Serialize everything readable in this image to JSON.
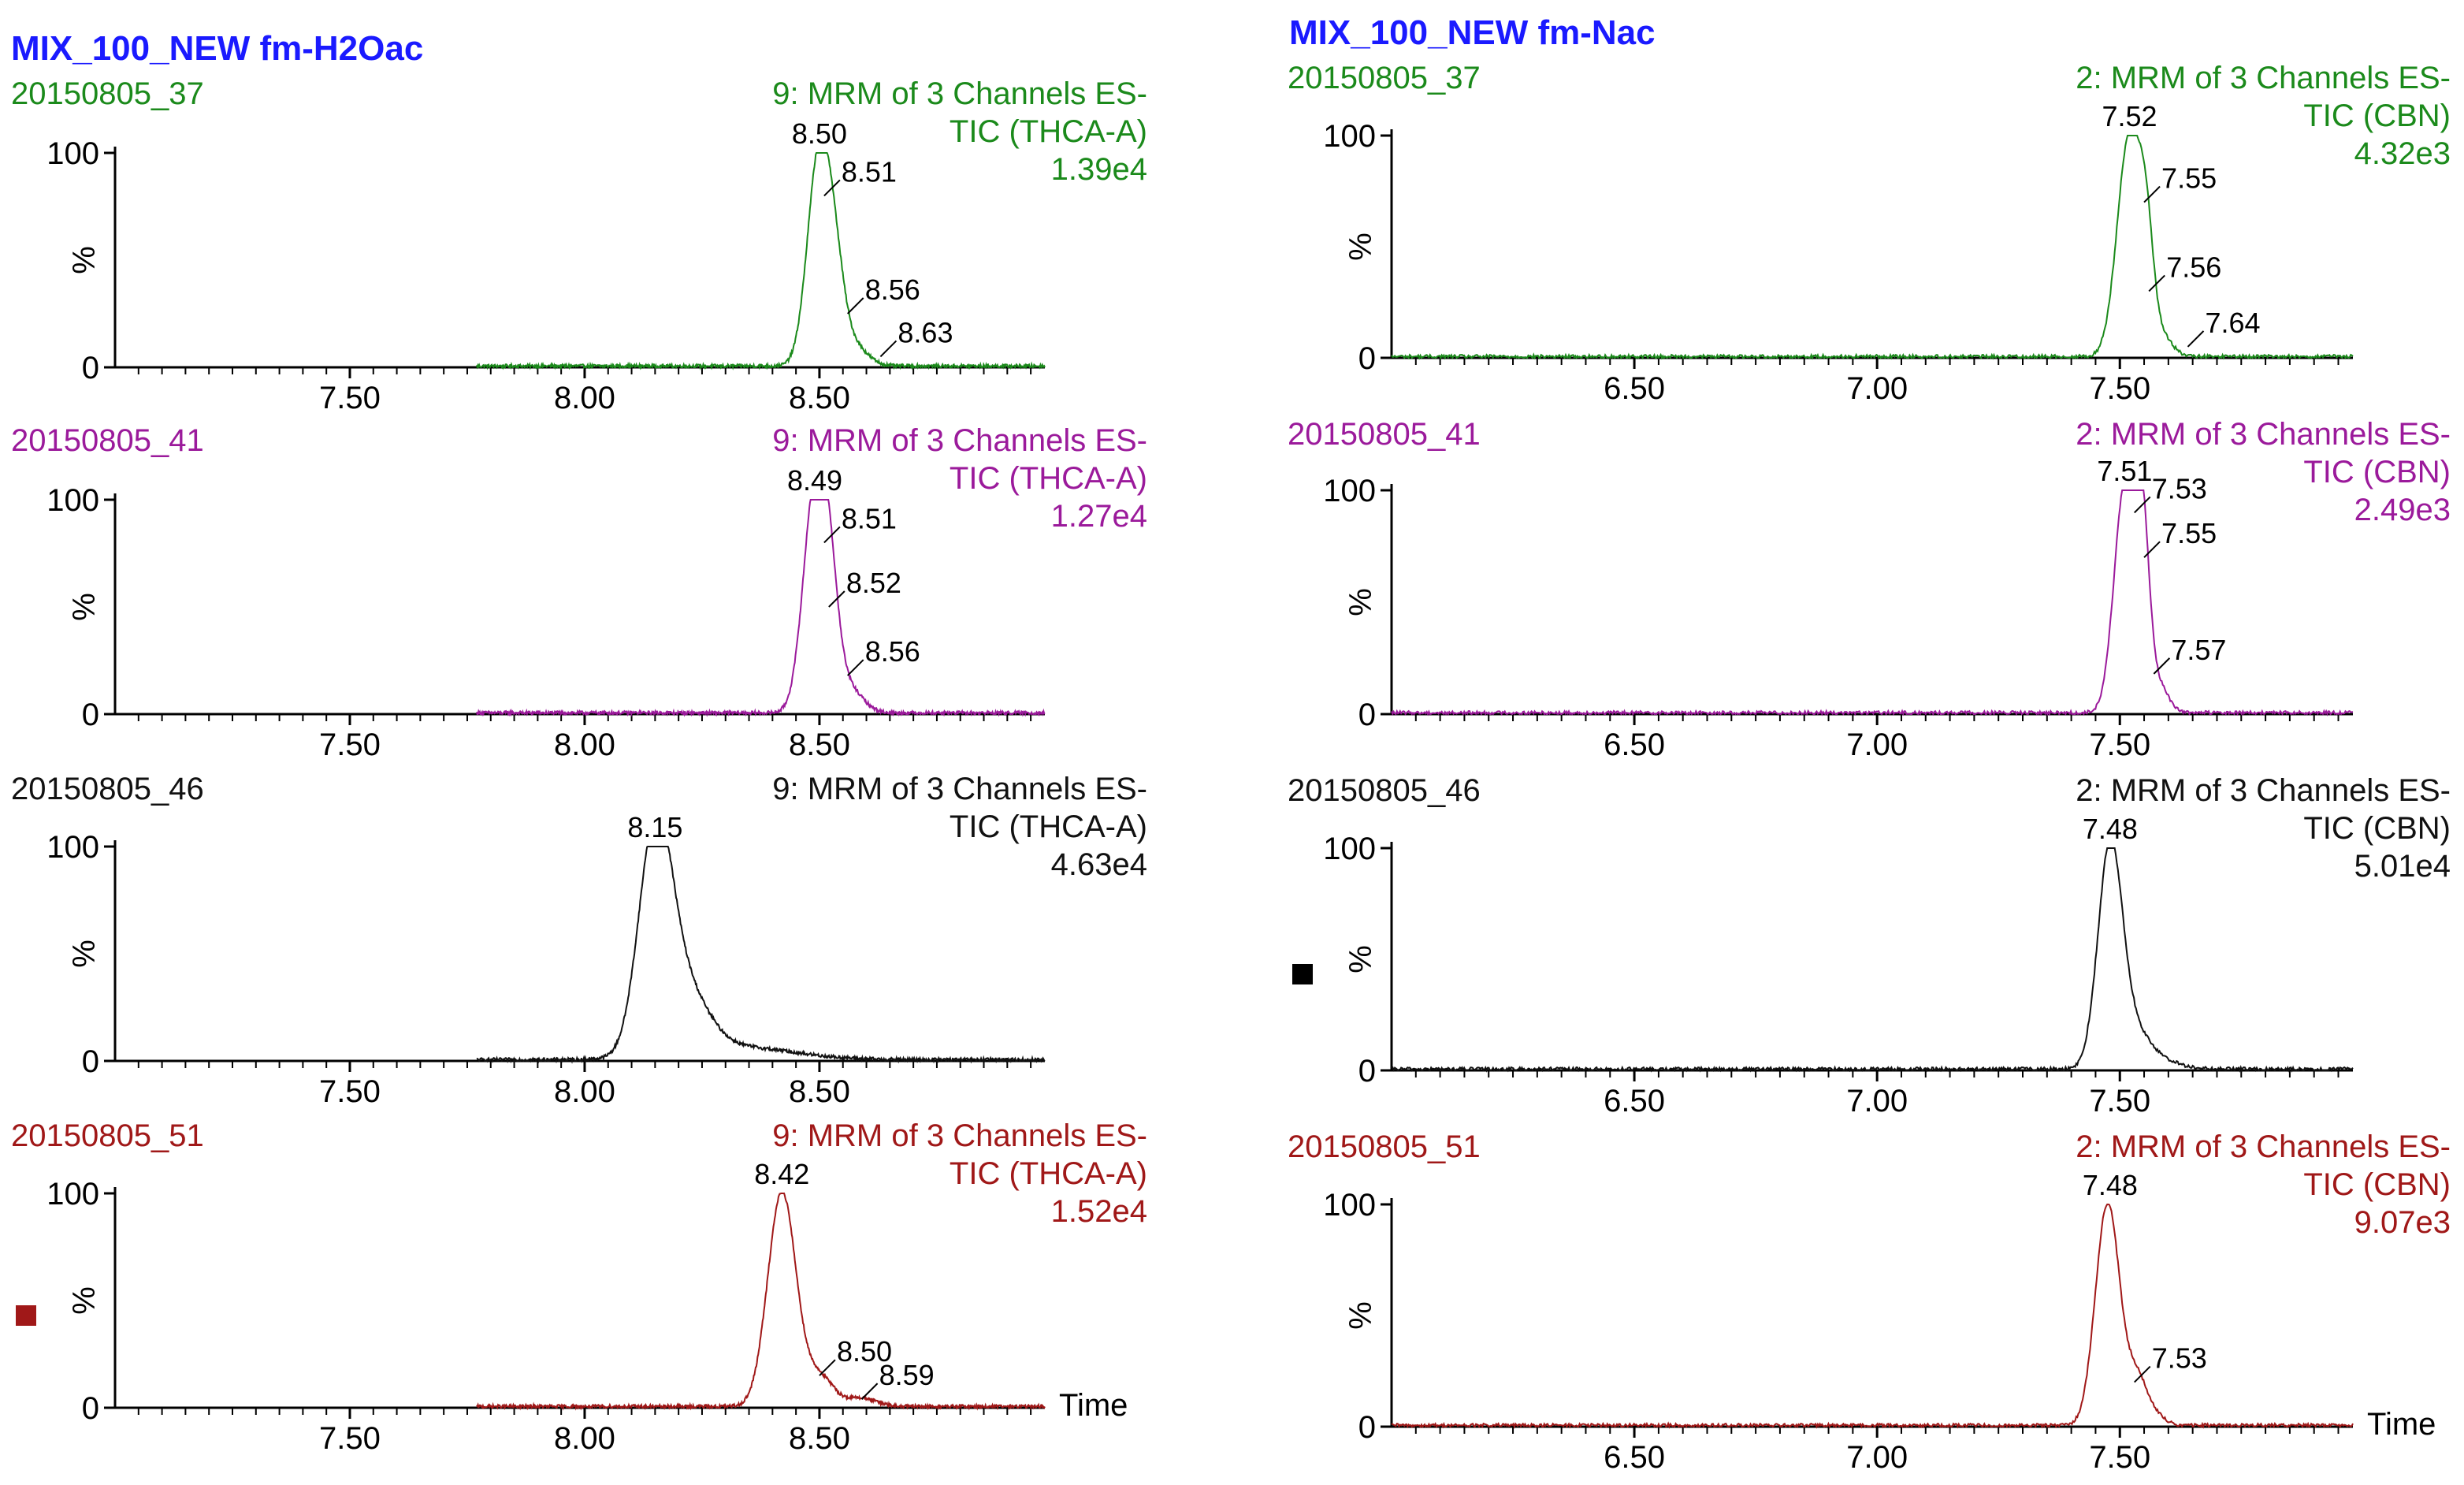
{
  "columns": [
    {
      "title": "MIX_100_NEW fm-H2Oac",
      "title_color": "#1a1aff"
    },
    {
      "title": "MIX_100_NEW fm-Nac",
      "title_color": "#1a1aff"
    }
  ],
  "y_axis": {
    "label": "%",
    "ticks": [
      "100",
      "0"
    ]
  },
  "time_label": "Time",
  "chart_data": [
    {
      "type": "line",
      "sample": "20150805_37",
      "color": "#1b8a1b",
      "channel": "9: MRM of 3 Channels ES-",
      "trace": "TIC (THCA-A)",
      "intensity": "1.39e4",
      "xlim": [
        7.0,
        8.98
      ],
      "ylim": [
        0,
        100
      ],
      "xticks": [
        7.5,
        8.0,
        8.5
      ],
      "xtick_labels": [
        "7.50",
        "8.00",
        "8.50"
      ],
      "baseline_start": 7.77,
      "peaks": [
        {
          "center": 8.5,
          "height": 100,
          "width": 0.025
        },
        {
          "center": 8.535,
          "height": 28,
          "width": 0.02
        },
        {
          "center": 8.57,
          "height": 10,
          "width": 0.03
        }
      ],
      "peak_labels": [
        {
          "x": 8.5,
          "y": 100,
          "text": "8.50"
        },
        {
          "x": 8.51,
          "y": 80,
          "text": "8.51"
        },
        {
          "x": 8.56,
          "y": 25,
          "text": "8.56"
        },
        {
          "x": 8.63,
          "y": 5,
          "text": "8.63"
        }
      ]
    },
    {
      "type": "line",
      "sample": "20150805_41",
      "color": "#9b1a9b",
      "channel": "9: MRM of 3 Channels ES-",
      "trace": "TIC (THCA-A)",
      "intensity": "1.27e4",
      "xlim": [
        7.0,
        8.98
      ],
      "ylim": [
        0,
        100
      ],
      "xticks": [
        7.5,
        8.0,
        8.5
      ],
      "xtick_labels": [
        "7.50",
        "8.00",
        "8.50"
      ],
      "baseline_start": 7.77,
      "peaks": [
        {
          "center": 8.49,
          "height": 100,
          "width": 0.025
        },
        {
          "center": 8.52,
          "height": 45,
          "width": 0.02
        },
        {
          "center": 8.56,
          "height": 12,
          "width": 0.03
        }
      ],
      "peak_labels": [
        {
          "x": 8.49,
          "y": 100,
          "text": "8.49"
        },
        {
          "x": 8.51,
          "y": 80,
          "text": "8.51"
        },
        {
          "x": 8.52,
          "y": 50,
          "text": "8.52"
        },
        {
          "x": 8.56,
          "y": 18,
          "text": "8.56"
        }
      ]
    },
    {
      "type": "line",
      "sample": "20150805_46",
      "color": "#111111",
      "channel": "9: MRM of 3 Channels ES-",
      "trace": "TIC (THCA-A)",
      "intensity": "4.63e4",
      "xlim": [
        7.0,
        8.98
      ],
      "ylim": [
        0,
        100
      ],
      "xticks": [
        7.5,
        8.0,
        8.5
      ],
      "xtick_labels": [
        "7.50",
        "8.00",
        "8.50"
      ],
      "baseline_start": 7.77,
      "peaks": [
        {
          "center": 8.15,
          "height": 100,
          "width": 0.035
        },
        {
          "center": 8.21,
          "height": 30,
          "width": 0.05
        },
        {
          "center": 8.32,
          "height": 6,
          "width": 0.12
        }
      ],
      "peak_labels": [
        {
          "x": 8.15,
          "y": 100,
          "text": "8.15"
        }
      ]
    },
    {
      "type": "line",
      "sample": "20150805_51",
      "color": "#a01818",
      "channel": "9: MRM of 3 Channels ES-",
      "trace": "TIC (THCA-A)",
      "intensity": "1.52e4",
      "xlim": [
        7.0,
        8.98
      ],
      "ylim": [
        0,
        100
      ],
      "xticks": [
        7.5,
        8.0,
        8.5
      ],
      "xtick_labels": [
        "7.50",
        "8.00",
        "8.50"
      ],
      "baseline_start": 7.77,
      "show_time_label": true,
      "marker": true,
      "peaks": [
        {
          "center": 8.42,
          "height": 100,
          "width": 0.03
        },
        {
          "center": 8.5,
          "height": 14,
          "width": 0.03
        },
        {
          "center": 8.59,
          "height": 4,
          "width": 0.03
        }
      ],
      "peak_labels": [
        {
          "x": 8.42,
          "y": 100,
          "text": "8.42"
        },
        {
          "x": 8.5,
          "y": 15,
          "text": "8.50"
        },
        {
          "x": 8.59,
          "y": 4,
          "text": "8.59"
        }
      ]
    },
    {
      "type": "line",
      "sample": "20150805_37",
      "color": "#1b8a1b",
      "channel": "2: MRM of 3 Channels ES-",
      "trace": "TIC (CBN)",
      "intensity": "4.32e3",
      "xlim": [
        6.0,
        7.98
      ],
      "ylim": [
        0,
        100
      ],
      "xticks": [
        6.5,
        7.0,
        7.5
      ],
      "xtick_labels": [
        "6.50",
        "7.00",
        "7.50"
      ],
      "baseline_start": 6.0,
      "peaks": [
        {
          "center": 7.52,
          "height": 100,
          "width": 0.025
        },
        {
          "center": 7.555,
          "height": 40,
          "width": 0.015
        },
        {
          "center": 7.59,
          "height": 8,
          "width": 0.02
        }
      ],
      "peak_labels": [
        {
          "x": 7.52,
          "y": 100,
          "text": "7.52"
        },
        {
          "x": 7.55,
          "y": 70,
          "text": "7.55"
        },
        {
          "x": 7.56,
          "y": 30,
          "text": "7.56"
        },
        {
          "x": 7.64,
          "y": 5,
          "text": "7.64"
        }
      ]
    },
    {
      "type": "line",
      "sample": "20150805_41",
      "color": "#9b1a9b",
      "channel": "2: MRM of 3 Channels ES-",
      "trace": "TIC (CBN)",
      "intensity": "2.49e3",
      "xlim": [
        6.0,
        7.98
      ],
      "ylim": [
        0,
        100
      ],
      "xticks": [
        6.5,
        7.0,
        7.5
      ],
      "xtick_labels": [
        "6.50",
        "7.00",
        "7.50"
      ],
      "baseline_start": 6.0,
      "peaks": [
        {
          "center": 7.51,
          "height": 100,
          "width": 0.022
        },
        {
          "center": 7.545,
          "height": 80,
          "width": 0.015
        },
        {
          "center": 7.58,
          "height": 12,
          "width": 0.02
        }
      ],
      "peak_labels": [
        {
          "x": 7.51,
          "y": 100,
          "text": "7.51"
        },
        {
          "x": 7.53,
          "y": 90,
          "text": "7.53"
        },
        {
          "x": 7.55,
          "y": 70,
          "text": "7.55"
        },
        {
          "x": 7.57,
          "y": 18,
          "text": "7.57"
        }
      ]
    },
    {
      "type": "line",
      "sample": "20150805_46",
      "color": "#111111",
      "channel": "2: MRM of 3 Channels ES-",
      "trace": "TIC (CBN)",
      "intensity": "5.01e4",
      "xlim": [
        6.0,
        7.98
      ],
      "ylim": [
        0,
        100
      ],
      "xticks": [
        6.5,
        7.0,
        7.5
      ],
      "xtick_labels": [
        "6.50",
        "7.00",
        "7.50"
      ],
      "baseline_start": 6.0,
      "marker": true,
      "peaks": [
        {
          "center": 7.48,
          "height": 100,
          "width": 0.025
        },
        {
          "center": 7.53,
          "height": 15,
          "width": 0.03
        },
        {
          "center": 7.58,
          "height": 4,
          "width": 0.04
        }
      ],
      "peak_labels": [
        {
          "x": 7.48,
          "y": 100,
          "text": "7.48"
        }
      ]
    },
    {
      "type": "line",
      "sample": "20150805_51",
      "color": "#a01818",
      "channel": "2: MRM of 3 Channels ES-",
      "trace": "TIC (CBN)",
      "intensity": "9.07e3",
      "xlim": [
        6.0,
        7.98
      ],
      "ylim": [
        0,
        100
      ],
      "xticks": [
        6.5,
        7.0,
        7.5
      ],
      "xtick_labels": [
        "6.50",
        "7.00",
        "7.50"
      ],
      "baseline_start": 6.0,
      "show_time_label": true,
      "peaks": [
        {
          "center": 7.475,
          "height": 100,
          "width": 0.025
        },
        {
          "center": 7.535,
          "height": 20,
          "width": 0.02
        },
        {
          "center": 7.57,
          "height": 5,
          "width": 0.02
        }
      ],
      "peak_labels": [
        {
          "x": 7.48,
          "y": 100,
          "text": "7.48"
        },
        {
          "x": 7.53,
          "y": 20,
          "text": "7.53"
        }
      ]
    }
  ]
}
